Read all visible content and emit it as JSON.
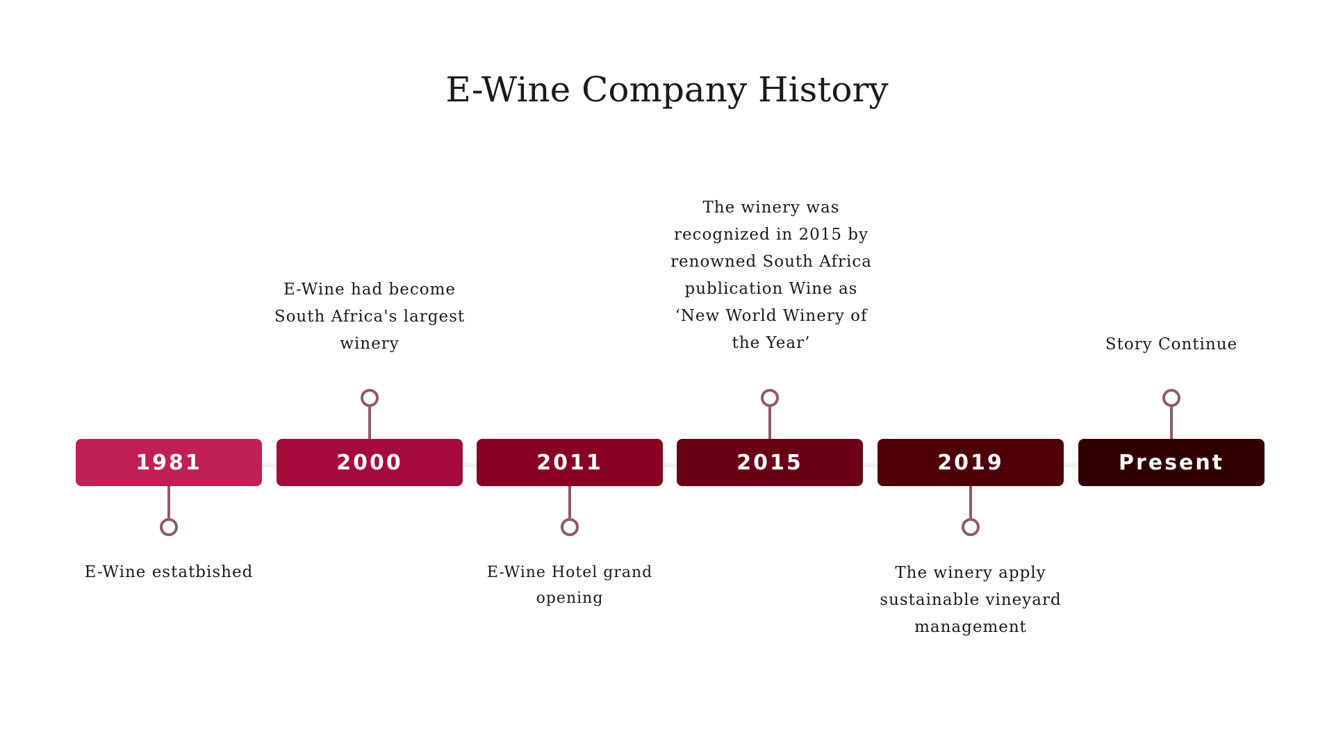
{
  "title": "E-Wine Company History",
  "events": [
    {
      "year": "1981",
      "description": "E-Wine estatbished",
      "color": "#c21e56"
    },
    {
      "year": "2000",
      "description": "E-Wine had become South Africa's largest winery",
      "color": "#a60a3d"
    },
    {
      "year": "2011",
      "description": "E-Wine Hotel grand opening",
      "color": "#880024"
    },
    {
      "year": "2015",
      "description": "The winery was recognized in 2015 by renowned South Africa publication Wine as ‘New World Winery of the Year’",
      "color": "#6a0016"
    },
    {
      "year": "2019",
      "description": "The winery apply sustainable vineyard management",
      "color": "#4e0006"
    },
    {
      "year": "Present",
      "description": "Story Continue",
      "color": "#300000"
    }
  ],
  "connector_color": "#8e5a6c"
}
